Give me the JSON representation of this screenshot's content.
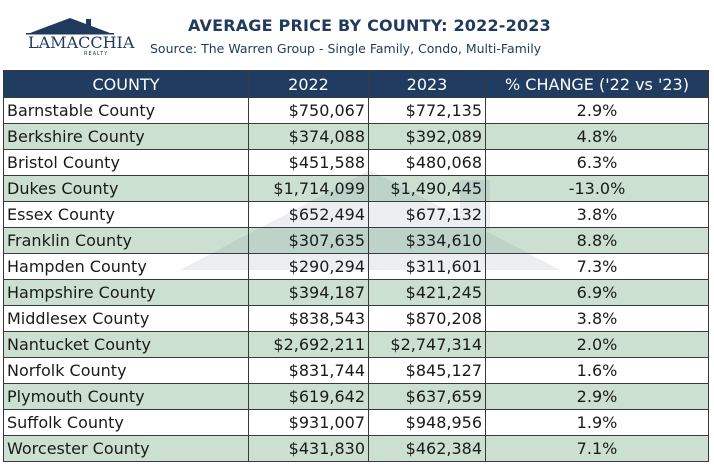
{
  "brand": {
    "logo_text": "LAMACCHIA",
    "logo_sub": "REALTY"
  },
  "header": {
    "title": "AVERAGE PRICE BY COUNTY: 2022-2023",
    "subtitle": "Source: The Warren Group - Single Family, Condo, Multi-Family"
  },
  "table": {
    "columns": [
      "COUNTY",
      "2022",
      "2023",
      "% CHANGE ('22 vs '23)"
    ],
    "rows": [
      {
        "county": "Barnstable County",
        "y2022": "$750,067",
        "y2023": "$772,135",
        "change": "2.9%"
      },
      {
        "county": "Berkshire County",
        "y2022": "$374,088",
        "y2023": "$392,089",
        "change": "4.8%"
      },
      {
        "county": "Bristol County",
        "y2022": "$451,588",
        "y2023": "$480,068",
        "change": "6.3%"
      },
      {
        "county": "Dukes County",
        "y2022": "$1,714,099",
        "y2023": "$1,490,445",
        "change": "-13.0%"
      },
      {
        "county": "Essex County",
        "y2022": "$652,494",
        "y2023": "$677,132",
        "change": "3.8%"
      },
      {
        "county": "Franklin County",
        "y2022": "$307,635",
        "y2023": "$334,610",
        "change": "8.8%"
      },
      {
        "county": "Hampden County",
        "y2022": "$290,294",
        "y2023": "$311,601",
        "change": "7.3%"
      },
      {
        "county": "Hampshire County",
        "y2022": "$394,187",
        "y2023": "$421,245",
        "change": "6.9%"
      },
      {
        "county": "Middlesex County",
        "y2022": "$838,543",
        "y2023": "$870,208",
        "change": "3.8%"
      },
      {
        "county": "Nantucket County",
        "y2022": "$2,692,211",
        "y2023": "$2,747,314",
        "change": "2.0%"
      },
      {
        "county": "Norfolk County",
        "y2022": "$831,744",
        "y2023": "$845,127",
        "change": "1.6%"
      },
      {
        "county": "Plymouth County",
        "y2022": "$619,642",
        "y2023": "$637,659",
        "change": "2.9%"
      },
      {
        "county": "Suffolk County",
        "y2022": "$931,007",
        "y2023": "$948,956",
        "change": "1.9%"
      },
      {
        "county": "Worcester County",
        "y2022": "$431,830",
        "y2023": "$462,384",
        "change": "7.1%"
      }
    ]
  },
  "colors": {
    "navy": "#203c60",
    "row_alt": "#cce0d2",
    "text_dark": "#1f3a5c"
  }
}
